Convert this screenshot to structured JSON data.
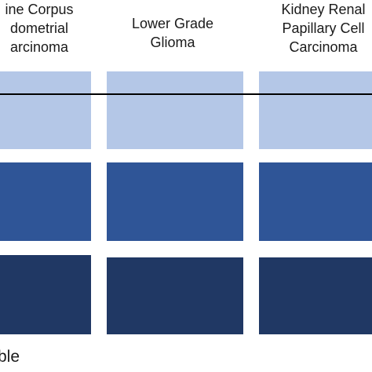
{
  "columns": [
    {
      "label_lines": [
        "ine Corpus",
        "dometrial",
        "arcinoma"
      ]
    },
    {
      "label_lines": [
        "Lower Grade",
        "Glioma"
      ]
    },
    {
      "label_lines": [
        "Kidney Renal",
        "Papillary Cell",
        "Carcinoma"
      ]
    }
  ],
  "rows": [
    {
      "color": "#b4c7e7"
    },
    {
      "color": "#2f5597"
    },
    {
      "color": "#203864"
    }
  ],
  "footer": "ble"
}
